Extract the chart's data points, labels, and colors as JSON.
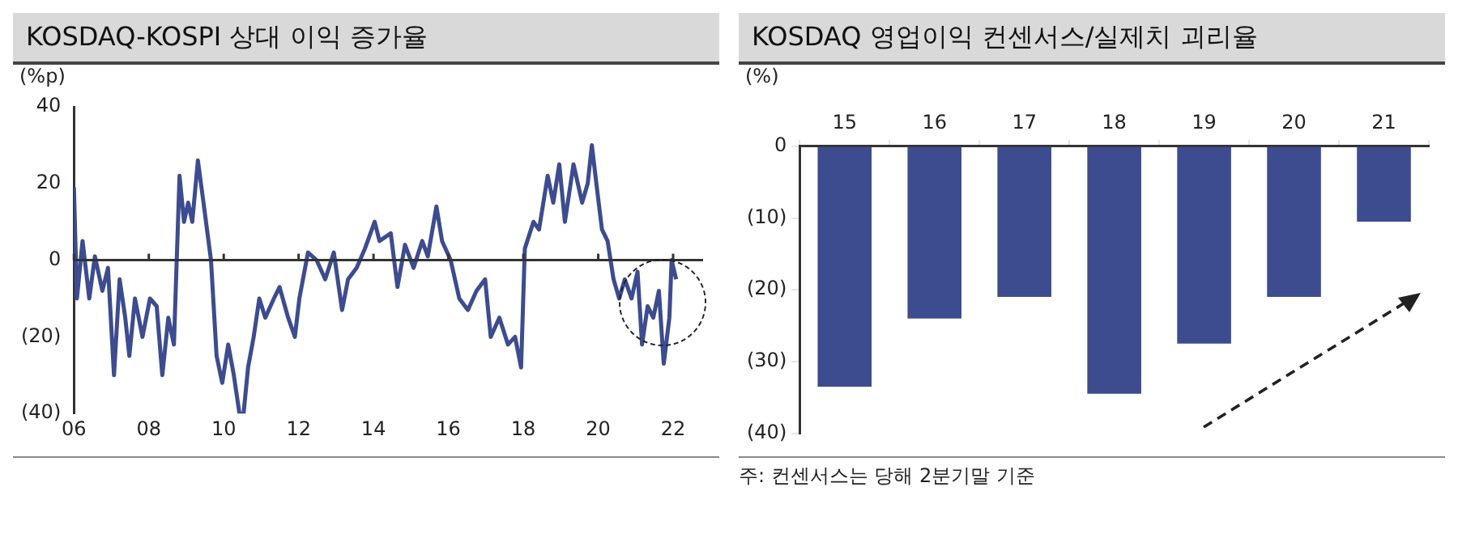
{
  "chart_data": [
    {
      "type": "line",
      "title": "KOSDAQ-KOSPI 상대 이익 증가율",
      "ylabel": "(%p)",
      "xlim": [
        2006,
        2022.8
      ],
      "ylim": [
        -40,
        40
      ],
      "xticks": [
        {
          "value": 2006,
          "label": "06"
        },
        {
          "value": 2008,
          "label": "08"
        },
        {
          "value": 2010,
          "label": "10"
        },
        {
          "value": 2012,
          "label": "12"
        },
        {
          "value": 2014,
          "label": "14"
        },
        {
          "value": 2016,
          "label": "16"
        },
        {
          "value": 2018,
          "label": "18"
        },
        {
          "value": 2020,
          "label": "20"
        },
        {
          "value": 2022,
          "label": "22"
        }
      ],
      "yticks": [
        {
          "value": -40,
          "label": "(40)"
        },
        {
          "value": -20,
          "label": "(20)"
        },
        0,
        20,
        40
      ],
      "ref_lines": [
        {
          "axis": "y",
          "value": 0,
          "color": "#333333"
        }
      ],
      "grid": false,
      "legend": false,
      "marker": "none",
      "line_style": "solid",
      "x": [
        2006.0,
        2006.08,
        2006.23,
        2006.41,
        2006.56,
        2006.76,
        2006.91,
        2007.07,
        2007.22,
        2007.37,
        2007.48,
        2007.63,
        2007.83,
        2008.03,
        2008.21,
        2008.36,
        2008.52,
        2008.67,
        2008.82,
        2008.94,
        2009.05,
        2009.16,
        2009.31,
        2009.46,
        2009.66,
        2009.81,
        2009.96,
        2010.12,
        2010.27,
        2010.42,
        2010.53,
        2010.65,
        2010.8,
        2010.95,
        2011.11,
        2011.34,
        2011.49,
        2011.72,
        2011.9,
        2012.02,
        2012.25,
        2012.48,
        2012.71,
        2012.94,
        2013.16,
        2013.32,
        2013.55,
        2013.77,
        2014.03,
        2014.16,
        2014.46,
        2014.64,
        2014.84,
        2015.07,
        2015.3,
        2015.45,
        2015.68,
        2015.83,
        2016.06,
        2016.29,
        2016.52,
        2016.75,
        2016.98,
        2017.13,
        2017.36,
        2017.59,
        2017.78,
        2017.94,
        2018.04,
        2018.27,
        2018.42,
        2018.65,
        2018.8,
        2018.96,
        2019.11,
        2019.34,
        2019.57,
        2019.72,
        2019.83,
        2019.95,
        2020.1,
        2020.25,
        2020.41,
        2020.56,
        2020.71,
        2020.89,
        2021.05,
        2021.17,
        2021.32,
        2021.47,
        2021.62,
        2021.75,
        2021.9,
        2021.96,
        2022.08
      ],
      "series": [
        {
          "color": "#3d4c8f",
          "values": [
            19,
            -10,
            5,
            -10,
            1,
            -8,
            -2,
            -30,
            -5,
            -15,
            -25,
            -10,
            -20,
            -10,
            -12,
            -30,
            -15,
            -22,
            22,
            10,
            15,
            10,
            26,
            15,
            0,
            -25,
            -32,
            -22,
            -30,
            -40,
            -40,
            -28,
            -20,
            -10,
            -15,
            -10,
            -7,
            -15,
            -20,
            -10,
            2,
            0,
            -5,
            2,
            -13,
            -5,
            -2,
            3,
            10,
            5,
            7,
            -7,
            4,
            -2,
            5,
            1,
            14,
            5,
            0,
            -10,
            -13,
            -8,
            -5,
            -20,
            -15,
            -22,
            -20,
            -28,
            3,
            10,
            8,
            22,
            15,
            25,
            10,
            25,
            15,
            20,
            30,
            20,
            8,
            5,
            -5,
            -10,
            -5,
            -10,
            -3,
            -22,
            -12,
            -15,
            -8,
            -27,
            -15,
            0,
            -5
          ]
        }
      ]
    },
    {
      "type": "bar",
      "title": "KOSDAQ 영업이익 컨센서스/실제치 괴리율",
      "ylabel": "(%)",
      "categories": [
        "15",
        "16",
        "17",
        "18",
        "19",
        "20",
        "21"
      ],
      "ylim": [
        -40,
        0
      ],
      "yticks": [
        {
          "value": -40,
          "label": "(40)"
        },
        {
          "value": -30,
          "label": "(30)"
        },
        {
          "value": -20,
          "label": "(20)"
        },
        {
          "value": -10,
          "label": "(10)"
        },
        0
      ],
      "grid": false,
      "legend": false,
      "series": [
        {
          "color": "#3d4c8f",
          "values": [
            -33.5,
            -24,
            -21,
            -34.5,
            -27.5,
            -21,
            -10.5
          ]
        }
      ],
      "annotations": [
        "주: 컨센서스는 당해 2분기말 기준"
      ]
    }
  ]
}
